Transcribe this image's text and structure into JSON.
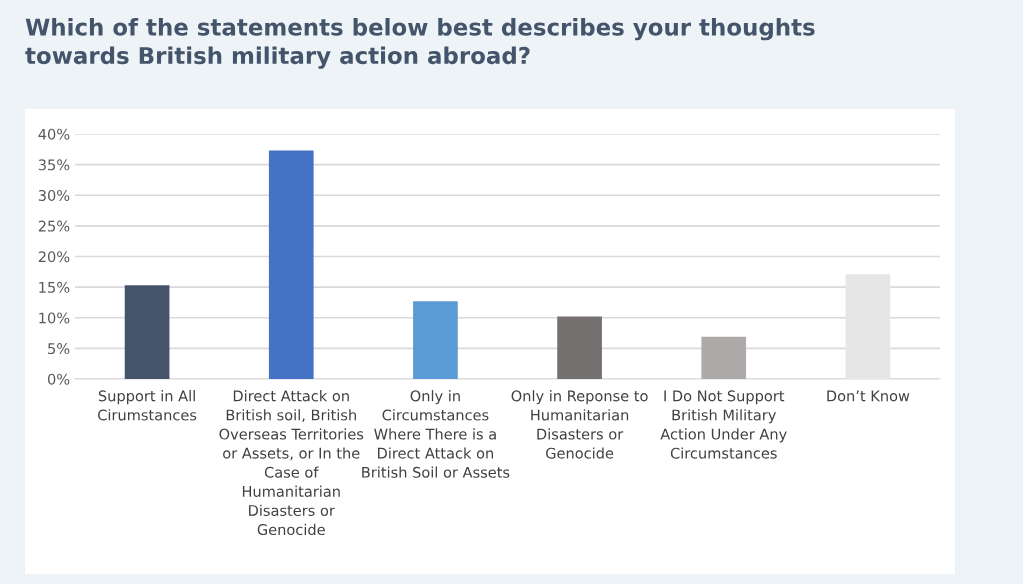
{
  "chart_data": {
    "type": "bar",
    "title": "Which of the statements below best describes your thoughts\ntowards British military action abroad?",
    "categories": [
      "Support in All\nCirumstances",
      "Direct Attack on\nBritish soil, British\nOverseas Territories\nor Assets, or In the\nCase of\nHumanitarian\nDisasters or\nGenocide",
      "Only in\nCircumstances\nWhere There is a\nDirect Attack on\nBritish Soil or Assets",
      "Only in Reponse to\nHumanitarian\nDisasters or\nGenocide",
      "I Do Not Support\nBritish Military\nAction Under Any\nCircumstances",
      "Don’t Know"
    ],
    "values": [
      15.3,
      37.3,
      12.7,
      10.2,
      6.9,
      17.1
    ],
    "colors": [
      "#44546a",
      "#4472c4",
      "#5b9bd5",
      "#767171",
      "#aeaaaa",
      "#e7e6e6"
    ],
    "ylim": [
      0,
      40
    ],
    "yticks": [
      {
        "value": 0,
        "label": "0%"
      },
      {
        "value": 5,
        "label": "5%"
      },
      {
        "value": 10,
        "label": "10%"
      },
      {
        "value": 15,
        "label": "15%"
      },
      {
        "value": 20,
        "label": "20%"
      },
      {
        "value": 25,
        "label": "25%"
      },
      {
        "value": 30,
        "label": "30%"
      },
      {
        "value": 35,
        "label": "35%"
      },
      {
        "value": 40,
        "label": "40%"
      }
    ],
    "grid": "y"
  }
}
